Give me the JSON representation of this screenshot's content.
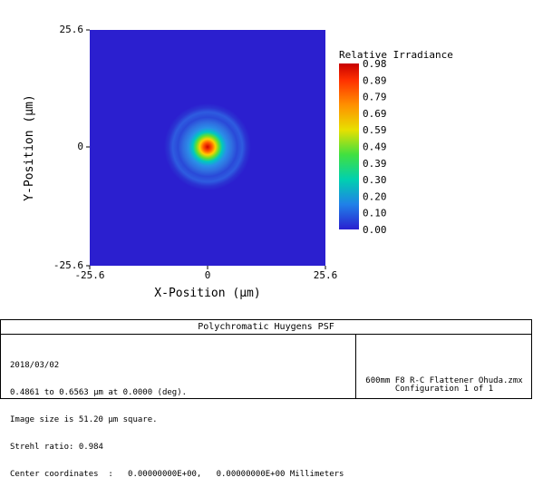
{
  "plot": {
    "y_axis_label": "Y-Position (µm)",
    "x_axis_label": "X-Position (µm)",
    "y_ticks": [
      "25.6",
      "0",
      "-25.6"
    ],
    "x_ticks": [
      "-25.6",
      "0",
      "25.6"
    ],
    "colorbar_title": "Relative Irradiance",
    "colorbar_ticks": [
      "0.98",
      "0.89",
      "0.79",
      "0.69",
      "0.59",
      "0.49",
      "0.39",
      "0.30",
      "0.20",
      "0.10",
      "0.00"
    ],
    "background_color": "#2b1fcf"
  },
  "footer": {
    "title": "Polychromatic Huygens PSF",
    "date": "2018/03/02",
    "wavelength": "0.4861 to 0.6563 µm at 0.0000 (deg).",
    "image_size": "Image size is 51.20 µm square.",
    "strehl": "Strehl ratio: 0.984",
    "center": "Center coordinates  :   0.00000000E+00,   0.00000000E+00 Millimeters",
    "file_name": "600mm F8 R-C Flattener Ohuda.zmx",
    "configuration": "Configuration 1 of 1"
  }
}
